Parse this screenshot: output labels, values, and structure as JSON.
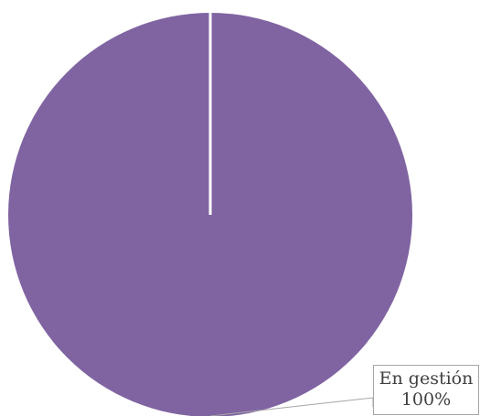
{
  "chart_data": {
    "type": "pie",
    "title": "",
    "slices": [
      {
        "label": "En gestión",
        "value": 100,
        "percent_label": "100%",
        "color": "#8064a2"
      }
    ]
  }
}
